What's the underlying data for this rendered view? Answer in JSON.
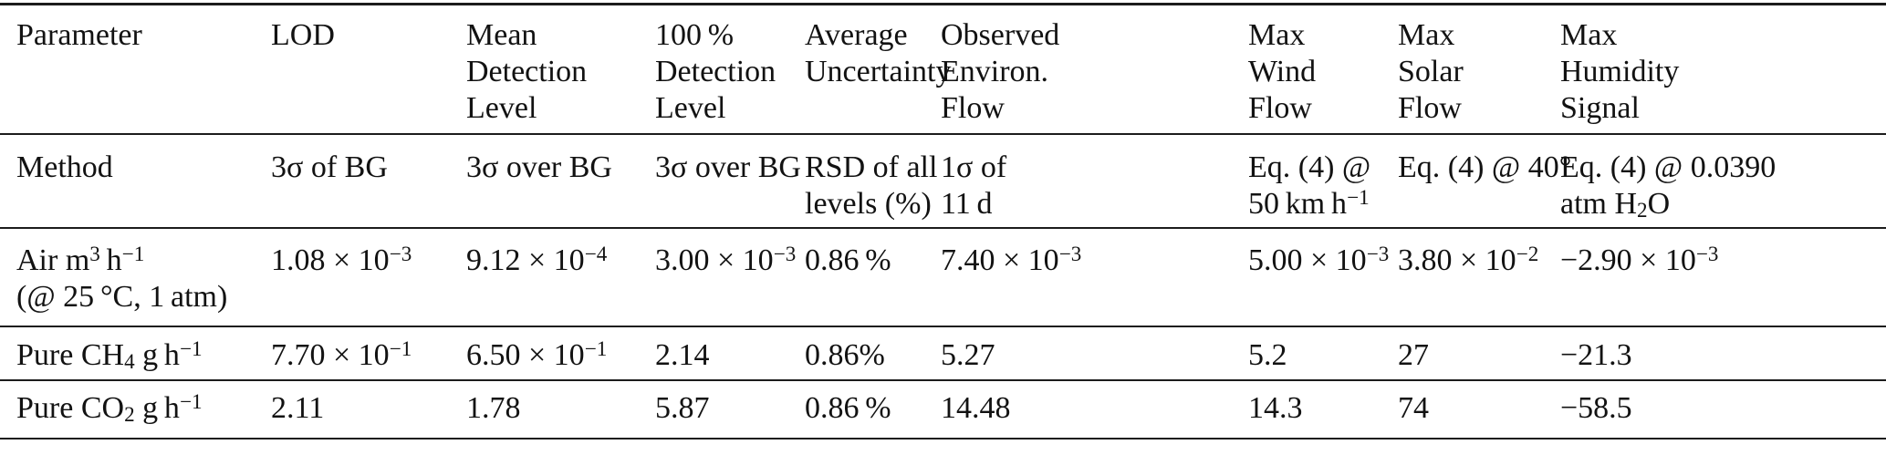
{
  "colors": {
    "background": "#ffffff",
    "text": "#121212",
    "rule": "#1c1c1c"
  },
  "table": {
    "columns": [
      {
        "label": "Parameter"
      },
      {
        "label": "LOD"
      },
      {
        "label": "Mean\nDetection\nLevel"
      },
      {
        "label": "100 %\nDetection\nLevel"
      },
      {
        "label": "Average\nUncertainty"
      },
      {
        "label": "Observed\nEnviron.\nFlow"
      },
      {
        "label": "Max\nWind\nFlow"
      },
      {
        "label": "Max\nSolar\nFlow"
      },
      {
        "label": "Max\nHumidity\nSignal"
      }
    ],
    "rows": [
      {
        "cells": [
          "Method",
          "3σ of BG",
          "3σ over BG",
          "3σ over BG",
          "RSD of all\nlevels (%)",
          "1σ of\n11 d",
          "Eq. (4) @\n50 km h^{−1}",
          "Eq. (4) @ 40°",
          "Eq. (4) @ 0.0390\natm H_{2}O"
        ]
      },
      {
        "cells": [
          "Air m^{3} h^{−1}\n(@ 25 °C, 1 atm)",
          "1.08 × 10^{−3}",
          "9.12 × 10^{−4}",
          "3.00 × 10^{−3}",
          "0.86 %",
          "7.40 × 10^{−3}",
          "5.00 × 10^{−3}",
          "3.80 × 10^{−2}",
          "−2.90 × 10^{−3}"
        ]
      },
      {
        "cells": [
          "Pure CH_{4} g h^{−1}",
          "7.70 × 10^{−1}",
          "6.50 × 10^{−1}",
          "2.14",
          "0.86%",
          "5.27",
          "5.2",
          "27",
          "−21.3"
        ]
      },
      {
        "cells": [
          "Pure CO_{2} g h^{−1}",
          "2.11",
          "1.78",
          "5.87",
          "0.86 %",
          "14.48",
          "14.3",
          "74",
          "−58.5"
        ]
      }
    ]
  }
}
